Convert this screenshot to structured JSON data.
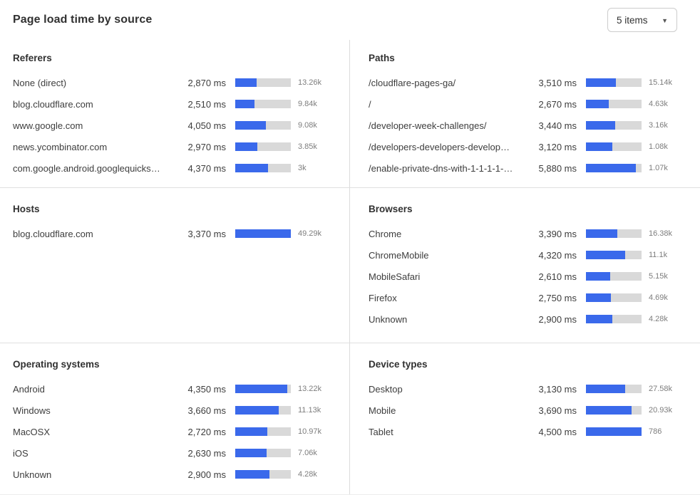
{
  "header": {
    "title": "Page load time by source",
    "items_dropdown": {
      "value": "5 items"
    }
  },
  "colors": {
    "bar_fill": "#3a69eb",
    "bar_track": "#d9d9d9",
    "divider": "#e0e0e0",
    "title_text": "#313131",
    "muted_text": "#7d7d7d"
  },
  "chart_data": {
    "type": "bar",
    "unit": "ms",
    "legend_position": "none",
    "note": "Each panel lists sources with average page load time (ms); blue bar = load time, right value = request count.",
    "panels": [
      {
        "title": "Referers",
        "rows": [
          {
            "label": "None (direct)",
            "time_ms": 2870,
            "time_display": "2,870 ms",
            "count_display": "13.26k",
            "bar_pct": 39
          },
          {
            "label": "blog.cloudflare.com",
            "time_ms": 2510,
            "time_display": "2,510 ms",
            "count_display": "9.84k",
            "bar_pct": 34
          },
          {
            "label": "www.google.com",
            "time_ms": 4050,
            "time_display": "4,050 ms",
            "count_display": "9.08k",
            "bar_pct": 55
          },
          {
            "label": "news.ycombinator.com",
            "time_ms": 2970,
            "time_display": "2,970 ms",
            "count_display": "3.85k",
            "bar_pct": 40
          },
          {
            "label": "com.google.android.googlequicksearc...",
            "time_ms": 4370,
            "time_display": "4,370 ms",
            "count_display": "3k",
            "bar_pct": 59
          }
        ]
      },
      {
        "title": "Paths",
        "rows": [
          {
            "label": "/cloudflare-pages-ga/",
            "time_ms": 3510,
            "time_display": "3,510 ms",
            "count_display": "15.14k",
            "bar_pct": 54
          },
          {
            "label": "/",
            "time_ms": 2670,
            "time_display": "2,670 ms",
            "count_display": "4.63k",
            "bar_pct": 41
          },
          {
            "label": "/developer-week-challenges/",
            "time_ms": 3440,
            "time_display": "3,440 ms",
            "count_display": "3.16k",
            "bar_pct": 53
          },
          {
            "label": "/developers-developers-developers/",
            "time_ms": 3120,
            "time_display": "3,120 ms",
            "count_display": "1.08k",
            "bar_pct": 48
          },
          {
            "label": "/enable-private-dns-with-1-1-1-1-on-...",
            "time_ms": 5880,
            "time_display": "5,880 ms",
            "count_display": "1.07k",
            "bar_pct": 90
          }
        ]
      },
      {
        "title": "Hosts",
        "rows": [
          {
            "label": "blog.cloudflare.com",
            "time_ms": 3370,
            "time_display": "3,370 ms",
            "count_display": "49.29k",
            "bar_pct": 100
          }
        ]
      },
      {
        "title": "Browsers",
        "rows": [
          {
            "label": "Chrome",
            "time_ms": 3390,
            "time_display": "3,390 ms",
            "count_display": "16.38k",
            "bar_pct": 56
          },
          {
            "label": "ChromeMobile",
            "time_ms": 4320,
            "time_display": "4,320 ms",
            "count_display": "11.1k",
            "bar_pct": 71
          },
          {
            "label": "MobileSafari",
            "time_ms": 2610,
            "time_display": "2,610 ms",
            "count_display": "5.15k",
            "bar_pct": 43
          },
          {
            "label": "Firefox",
            "time_ms": 2750,
            "time_display": "2,750 ms",
            "count_display": "4.69k",
            "bar_pct": 45
          },
          {
            "label": "Unknown",
            "time_ms": 2900,
            "time_display": "2,900 ms",
            "count_display": "4.28k",
            "bar_pct": 48
          }
        ]
      },
      {
        "title": "Operating systems",
        "rows": [
          {
            "label": "Android",
            "time_ms": 4350,
            "time_display": "4,350 ms",
            "count_display": "13.22k",
            "bar_pct": 93
          },
          {
            "label": "Windows",
            "time_ms": 3660,
            "time_display": "3,660 ms",
            "count_display": "11.13k",
            "bar_pct": 78
          },
          {
            "label": "MacOSX",
            "time_ms": 2720,
            "time_display": "2,720 ms",
            "count_display": "10.97k",
            "bar_pct": 58
          },
          {
            "label": "iOS",
            "time_ms": 2630,
            "time_display": "2,630 ms",
            "count_display": "7.06k",
            "bar_pct": 56
          },
          {
            "label": "Unknown",
            "time_ms": 2900,
            "time_display": "2,900 ms",
            "count_display": "4.28k",
            "bar_pct": 62
          }
        ]
      },
      {
        "title": "Device types",
        "rows": [
          {
            "label": "Desktop",
            "time_ms": 3130,
            "time_display": "3,130 ms",
            "count_display": "27.58k",
            "bar_pct": 70
          },
          {
            "label": "Mobile",
            "time_ms": 3690,
            "time_display": "3,690 ms",
            "count_display": "20.93k",
            "bar_pct": 82
          },
          {
            "label": "Tablet",
            "time_ms": 4500,
            "time_display": "4,500 ms",
            "count_display": "786",
            "bar_pct": 100
          }
        ]
      }
    ]
  }
}
